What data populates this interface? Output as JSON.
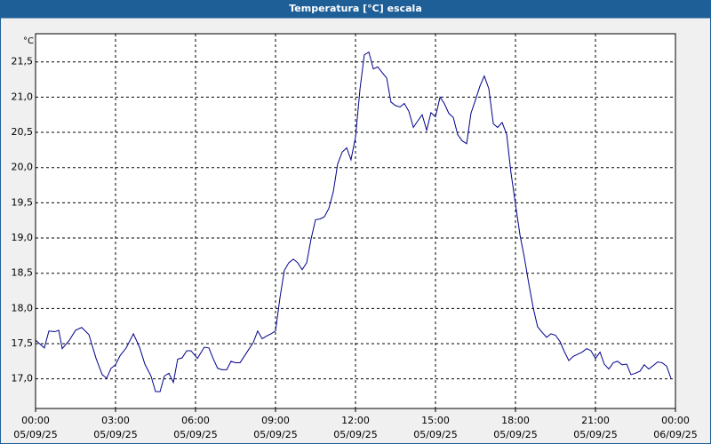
{
  "chart_data": {
    "type": "line",
    "title": "Temperatura [°C] escala",
    "ylabel": "°C",
    "color": "#00008b",
    "grid": true,
    "x": [
      0,
      0.33,
      0.5,
      0.73,
      0.87,
      1,
      1.27,
      1.5,
      1.73,
      2,
      2.27,
      2.5,
      2.67,
      2.83,
      3,
      3.17,
      3.4,
      3.67,
      3.9,
      4.1,
      4.33,
      4.5,
      4.67,
      4.83,
      5,
      5.17,
      5.33,
      5.5,
      5.67,
      5.83,
      6.07,
      6.33,
      6.5,
      6.67,
      6.83,
      7,
      7.17,
      7.33,
      7.5,
      7.67,
      7.93,
      8.17,
      8.33,
      8.5,
      8.67,
      8.83,
      9,
      9.17,
      9.33,
      9.5,
      9.67,
      9.83,
      10,
      10.17,
      10.33,
      10.5,
      10.67,
      10.83,
      11,
      11.17,
      11.33,
      11.5,
      11.67,
      11.83,
      12,
      12.17,
      12.33,
      12.5,
      12.67,
      12.83,
      13,
      13.17,
      13.33,
      13.5,
      13.67,
      13.83,
      14,
      14.17,
      14.33,
      14.5,
      14.67,
      14.83,
      15,
      15.17,
      15.33,
      15.5,
      15.67,
      15.83,
      16,
      16.17,
      16.33,
      16.5,
      16.67,
      16.83,
      17,
      17.17,
      17.33,
      17.5,
      17.67,
      17.83,
      18,
      18.17,
      18.33,
      18.5,
      18.67,
      18.83,
      19,
      19.17,
      19.33,
      19.5,
      19.67,
      19.83,
      20,
      20.17,
      20.33,
      20.5,
      20.67,
      20.83,
      21,
      21.17,
      21.33,
      21.5,
      21.67,
      21.83,
      22,
      22.17,
      22.33,
      22.5,
      22.67,
      22.83,
      23,
      23.17,
      23.33,
      23.5,
      23.67,
      23.83
    ],
    "values": [
      17.55,
      17.44,
      17.68,
      17.67,
      17.69,
      17.43,
      17.55,
      17.69,
      17.73,
      17.63,
      17.29,
      17.06,
      17.01,
      17.15,
      17.2,
      17.33,
      17.44,
      17.64,
      17.45,
      17.21,
      17.04,
      16.82,
      16.82,
      17.04,
      17.08,
      16.95,
      17.28,
      17.3,
      17.4,
      17.4,
      17.29,
      17.45,
      17.44,
      17.28,
      17.15,
      17.13,
      17.13,
      17.25,
      17.23,
      17.23,
      17.38,
      17.52,
      17.68,
      17.57,
      17.61,
      17.64,
      17.68,
      18.16,
      18.54,
      18.65,
      18.7,
      18.65,
      18.55,
      18.65,
      18.98,
      19.26,
      19.27,
      19.3,
      19.42,
      19.66,
      20.05,
      20.22,
      20.28,
      20.11,
      20.43,
      21.12,
      21.6,
      21.64,
      21.4,
      21.43,
      21.35,
      21.27,
      20.93,
      20.88,
      20.86,
      20.91,
      20.8,
      20.57,
      20.66,
      20.75,
      20.53,
      20.78,
      20.72,
      21.0,
      20.91,
      20.77,
      20.71,
      20.47,
      20.38,
      20.34,
      20.77,
      20.96,
      21.16,
      21.3,
      21.12,
      20.62,
      20.57,
      20.64,
      20.47,
      19.93,
      19.48,
      19.04,
      18.73,
      18.35,
      18.0,
      17.74,
      17.66,
      17.59,
      17.64,
      17.62,
      17.53,
      17.39,
      17.26,
      17.32,
      17.35,
      17.38,
      17.43,
      17.4,
      17.29,
      17.38,
      17.21,
      17.14,
      17.23,
      17.25,
      17.2,
      17.21,
      17.06,
      17.08,
      17.11,
      17.2,
      17.14,
      17.19,
      17.24,
      17.23,
      17.18,
      17.01
    ],
    "xlim": [
      0,
      24
    ],
    "xticks": [
      {
        "value": 0,
        "label": "00:00"
      },
      {
        "value": 3,
        "label": "03:00"
      },
      {
        "value": 6,
        "label": "06:00"
      },
      {
        "value": 9,
        "label": "09:00"
      },
      {
        "value": 12,
        "label": "12:00"
      },
      {
        "value": 15,
        "label": "15:00"
      },
      {
        "value": 18,
        "label": "18:00"
      },
      {
        "value": 21,
        "label": "21:00"
      },
      {
        "value": 24,
        "label": "00:00"
      }
    ],
    "xtick_dates": [
      "05/09/25",
      "05/09/25",
      "05/09/25",
      "05/09/25",
      "05/09/25",
      "05/09/25",
      "05/09/25",
      "05/09/25",
      "06/09/25"
    ],
    "ylim": [
      16.58,
      21.9
    ],
    "yticks": [
      {
        "value": 17,
        "label": "17,0"
      },
      {
        "value": 17.5,
        "label": "17,5"
      },
      {
        "value": 18,
        "label": "18,0"
      },
      {
        "value": 18.5,
        "label": "18,5"
      },
      {
        "value": 19,
        "label": "19,0"
      },
      {
        "value": 19.5,
        "label": "19,5"
      },
      {
        "value": 20,
        "label": "20,0"
      },
      {
        "value": 20.5,
        "label": "20,5"
      },
      {
        "value": 21,
        "label": "21,0"
      },
      {
        "value": 21.5,
        "label": "21,5"
      }
    ]
  }
}
